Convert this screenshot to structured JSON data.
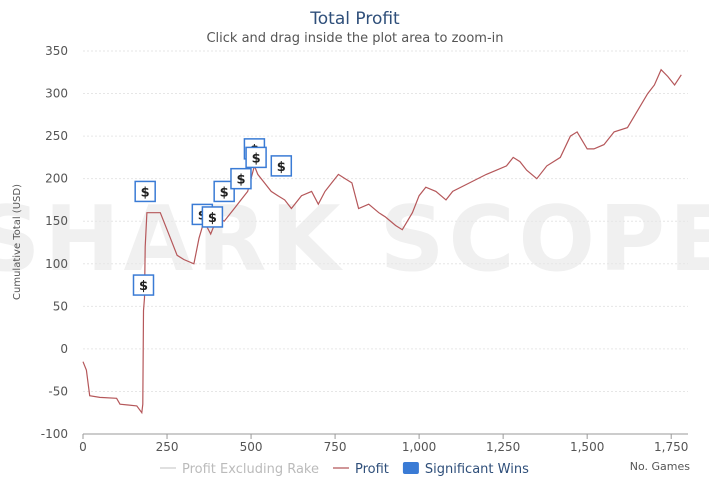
{
  "chart_data": {
    "type": "line",
    "title": "Total Profit",
    "subtitle": "Click and drag inside the plot area to zoom-in",
    "watermark": "SHARK SCOPE",
    "y_label": "Cumulative Total (USD)",
    "x_label": "No. Games",
    "xlim": [
      0,
      1800
    ],
    "xticks": [
      0,
      250,
      500,
      750,
      {
        "value": 1000,
        "label": "1,000"
      },
      {
        "value": 1250,
        "label": "1,250"
      },
      {
        "value": 1500,
        "label": "1,500"
      },
      {
        "value": 1750,
        "label": "1,750"
      }
    ],
    "ylim": [
      -100,
      350
    ],
    "yticks": [
      -100,
      -50,
      0,
      50,
      100,
      150,
      200,
      250,
      300,
      350
    ],
    "grid": true,
    "legend": "bottom",
    "series": [
      {
        "name": "Profit Excluding Rake",
        "color": "#cccccc",
        "visible": false,
        "x": [],
        "values": []
      },
      {
        "name": "Profit",
        "color": "#b5575a",
        "visible": true,
        "x": [
          0,
          10,
          20,
          50,
          100,
          110,
          160,
          175,
          178,
          180,
          183,
          185,
          190,
          230,
          260,
          280,
          300,
          330,
          345,
          360,
          380,
          400,
          420,
          450,
          470,
          490,
          510,
          520,
          540,
          560,
          580,
          600,
          620,
          650,
          680,
          700,
          720,
          740,
          760,
          780,
          800,
          820,
          850,
          880,
          900,
          930,
          950,
          980,
          1000,
          1020,
          1050,
          1080,
          1100,
          1150,
          1200,
          1230,
          1260,
          1280,
          1300,
          1320,
          1350,
          1380,
          1420,
          1450,
          1470,
          1500,
          1520,
          1550,
          1580,
          1620,
          1650,
          1680,
          1700,
          1720,
          1740,
          1760,
          1780
        ],
        "values": [
          -15,
          -25,
          -55,
          -57,
          -58,
          -65,
          -67,
          -75,
          -65,
          45,
          60,
          120,
          160,
          160,
          130,
          110,
          105,
          100,
          130,
          150,
          135,
          155,
          150,
          165,
          175,
          185,
          215,
          205,
          195,
          185,
          180,
          175,
          165,
          180,
          185,
          170,
          185,
          195,
          205,
          200,
          195,
          165,
          170,
          160,
          155,
          145,
          140,
          160,
          180,
          190,
          185,
          175,
          185,
          195,
          205,
          210,
          215,
          225,
          220,
          210,
          200,
          215,
          225,
          250,
          255,
          235,
          235,
          240,
          255,
          260,
          280,
          300,
          310,
          328,
          320,
          310,
          322
        ]
      },
      {
        "name": "Significant Wins",
        "color": "#3a7bd5",
        "visible": true,
        "marker_label": "$",
        "x": [
          180,
          185,
          355,
          385,
          420,
          470,
          510,
          515,
          590
        ],
        "values": [
          75,
          185,
          158,
          155,
          185,
          200,
          235,
          225,
          215
        ]
      }
    ]
  }
}
